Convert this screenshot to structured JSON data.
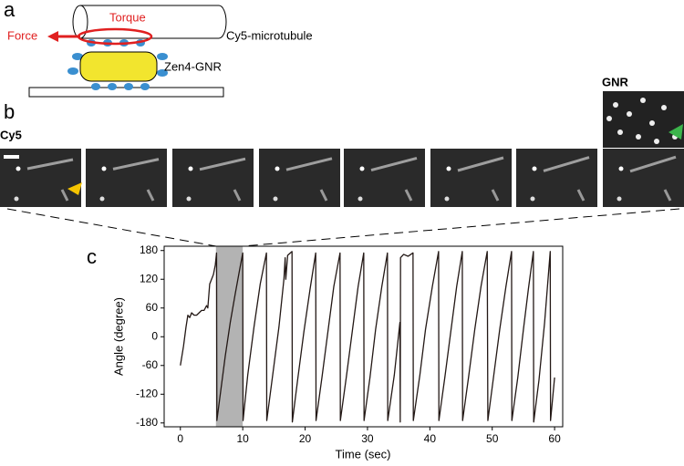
{
  "panel_labels": [
    "a",
    "b",
    "c"
  ],
  "schematic": {
    "torque": "Torque",
    "force": "Force",
    "microtubule": "Cy5-microtubule",
    "nanorod": "Zen4-GNR"
  },
  "images": {
    "gnr_label": "GNR",
    "cy5_label": "Cy5"
  },
  "chart_data": {
    "type": "line",
    "xlabel": "Time (sec)",
    "ylabel": "Angle (degree)",
    "xlim": [
      -2.6,
      61.3
    ],
    "ylim": [
      -188,
      189
    ],
    "xticks": [
      0,
      10,
      20,
      30,
      40,
      50,
      60
    ],
    "yticks": [
      -180,
      -120,
      -60,
      0,
      60,
      120,
      180
    ],
    "highlight": [
      5.7,
      10
    ],
    "highlight_color": "#b3b3b3",
    "x": [
      0,
      0.5,
      0.9,
      1.2,
      1.5,
      1.8,
      2.2,
      2.6,
      3.0,
      3.4,
      3.8,
      4.2,
      4.4,
      4.7,
      5.0,
      5.3,
      5.6,
      5.8,
      5.85,
      6.5,
      7.2,
      8.0,
      8.8,
      9.5,
      10.0,
      10.05,
      10.8,
      11.8,
      12.8,
      13.8,
      13.85,
      14.8,
      15.8,
      16.6,
      16.8,
      16.9,
      17.2,
      17.9,
      17.95,
      18.8,
      19.8,
      20.8,
      21.7,
      21.75,
      22.7,
      23.7,
      24.6,
      25.6,
      25.65,
      26.6,
      27.6,
      28.5,
      29.4,
      29.45,
      30.4,
      31.3,
      32.3,
      33.2,
      33.25,
      34.3,
      35.2,
      35.25,
      35.3,
      35.8,
      36.5,
      37.3,
      37.35,
      38.4,
      39.3,
      40.4,
      41.4,
      41.45,
      42.4,
      43.4,
      44.3,
      45.2,
      45.25,
      46.2,
      47.2,
      48.2,
      49.2,
      49.3,
      50.2,
      51.2,
      52.2,
      53.1,
      53.15,
      54.1,
      55.0,
      55.8,
      56.6,
      56.65,
      57.5,
      58.4,
      59.3,
      59.35,
      60
    ],
    "series": [
      {
        "color": "#231815",
        "values": [
          -60,
          -20,
          20,
          45,
          40,
          50,
          45,
          45,
          50,
          55,
          55,
          65,
          60,
          110,
          120,
          130,
          150,
          175,
          -175,
          -110,
          -40,
          30,
          90,
          140,
          175,
          -175,
          -80,
          20,
          110,
          175,
          -175,
          -80,
          20,
          120,
          165,
          120,
          170,
          178,
          -178,
          -90,
          10,
          100,
          175,
          -175,
          -85,
          15,
          105,
          175,
          -175,
          -85,
          15,
          105,
          175,
          -175,
          -85,
          15,
          105,
          175,
          -175,
          -80,
          30,
          -178,
          165,
          172,
          168,
          175,
          -175,
          -80,
          15,
          105,
          178,
          -175,
          -85,
          15,
          105,
          178,
          -175,
          -85,
          15,
          105,
          178,
          -175,
          -85,
          15,
          105,
          178,
          -175,
          -85,
          15,
          100,
          178,
          -178,
          -90,
          30,
          178,
          -175,
          -85
        ]
      }
    ]
  }
}
